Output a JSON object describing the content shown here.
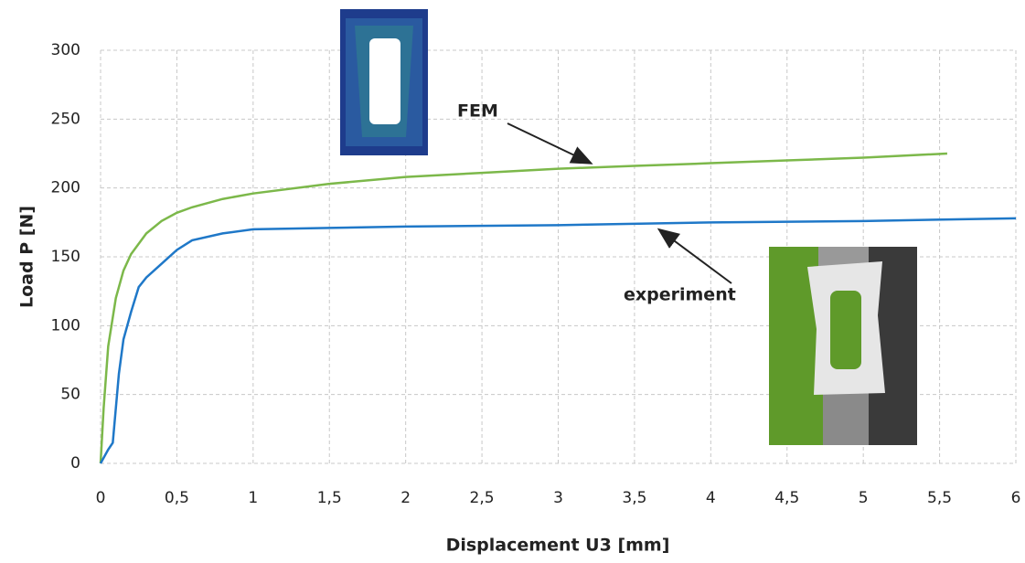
{
  "chart_data": {
    "type": "line",
    "xlabel": "Displacement U3 [mm]",
    "ylabel": "Load P [N]",
    "xlim": [
      0,
      6
    ],
    "ylim": [
      0,
      300
    ],
    "xticks": [
      0,
      {
        "value": 0.5,
        "label": "0,5"
      },
      1,
      {
        "value": 1.5,
        "label": "1,5"
      },
      2,
      {
        "value": 2.5,
        "label": "2,5"
      },
      3,
      {
        "value": 3.5,
        "label": "3,5"
      },
      4,
      {
        "value": 4.5,
        "label": "4,5"
      },
      5,
      {
        "value": 5.5,
        "label": "5,5"
      },
      6
    ],
    "yticks": [
      0,
      50,
      100,
      150,
      200,
      250,
      300
    ],
    "grid": true,
    "series": [
      {
        "name": "FEM",
        "color": "#7cb84a",
        "x": [
          0,
          0.02,
          0.05,
          0.1,
          0.15,
          0.2,
          0.3,
          0.4,
          0.5,
          0.6,
          0.8,
          1,
          1.5,
          2,
          2.5,
          3,
          3.5,
          4,
          4.5,
          5,
          5.55
        ],
        "values": [
          0,
          40,
          85,
          120,
          140,
          152,
          167,
          176,
          182,
          186,
          192,
          196,
          203,
          208,
          211,
          214,
          216,
          218,
          220,
          222,
          225
        ]
      },
      {
        "name": "experiment",
        "color": "#1f78c8",
        "x": [
          0,
          0.05,
          0.08,
          0.1,
          0.12,
          0.15,
          0.2,
          0.25,
          0.3,
          0.4,
          0.5,
          0.6,
          0.8,
          1,
          1.5,
          2,
          3,
          4,
          5,
          6
        ],
        "values": [
          0,
          10,
          15,
          40,
          65,
          90,
          110,
          128,
          135,
          145,
          155,
          162,
          167,
          170,
          171,
          172,
          173,
          175,
          176,
          178
        ]
      }
    ]
  }
}
